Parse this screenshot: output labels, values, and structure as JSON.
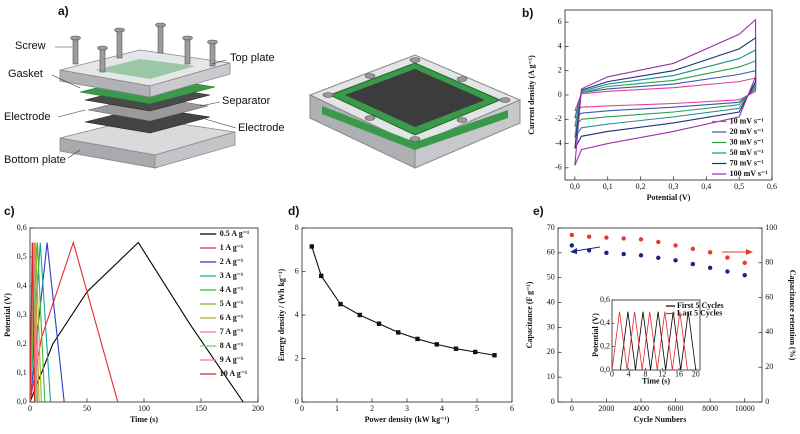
{
  "diagram": {
    "panel": "a)",
    "labels": [
      "Screw",
      "Top plate",
      "Gasket",
      "Separator",
      "Electrode",
      "Electrode",
      "Bottom plate"
    ]
  },
  "chart_data": [
    {
      "panel": "b)",
      "type": "line",
      "xlabel": "Potential (V)",
      "ylabel": "Current density (A g⁻¹)",
      "xlim": [
        -0.03,
        0.6
      ],
      "xticks": [
        {
          "value": 0,
          "label": "0,0"
        },
        {
          "value": 0.1,
          "label": "0,1"
        },
        {
          "value": 0.2,
          "label": "0,2"
        },
        {
          "value": 0.3,
          "label": "0,3"
        },
        {
          "value": 0.4,
          "label": "0,4"
        },
        {
          "value": 0.5,
          "label": "0,5"
        },
        {
          "value": 0.6,
          "label": "0,6"
        }
      ],
      "ylim": [
        -7,
        7
      ],
      "yticks": [
        -6,
        -4,
        -2,
        0,
        2,
        4,
        6
      ],
      "legend": "lower right",
      "x": [
        0,
        0.02,
        0.1,
        0.3,
        0.5,
        0.55,
        0.55,
        0.5,
        0.3,
        0.1,
        0.02,
        0
      ],
      "series": [
        {
          "name": "10 mV s⁻¹",
          "color": "#e0409a",
          "values": [
            -1.3,
            0.1,
            0.3,
            0.6,
            1.1,
            1.4,
            0.3,
            -0.4,
            -0.7,
            -0.9,
            -1.0,
            -1.3
          ]
        },
        {
          "name": "20 mV s⁻¹",
          "color": "#3a5bb0",
          "values": [
            -1.9,
            0.2,
            0.5,
            0.9,
            1.7,
            2.0,
            0.5,
            -0.6,
            -1.0,
            -1.3,
            -1.5,
            -1.9
          ]
        },
        {
          "name": "30 mV s⁻¹",
          "color": "#2aa14c",
          "values": [
            -2.6,
            0.2,
            0.7,
            1.2,
            2.3,
            2.8,
            0.7,
            -0.8,
            -1.4,
            -1.8,
            -2.0,
            -2.6
          ]
        },
        {
          "name": "50 mV s⁻¹",
          "color": "#1f8f8f",
          "values": [
            -3.5,
            0.3,
            0.9,
            1.6,
            3.0,
            3.7,
            0.9,
            -1.1,
            -1.8,
            -2.4,
            -2.7,
            -3.5
          ]
        },
        {
          "name": "70 mV s⁻¹",
          "color": "#1f2f7a",
          "values": [
            -4.4,
            0.4,
            1.1,
            2.0,
            3.8,
            4.7,
            1.1,
            -1.4,
            -2.3,
            -3.0,
            -3.4,
            -4.4
          ]
        },
        {
          "name": "100 mV s⁻¹",
          "color": "#9b2fae",
          "values": [
            -5.8,
            0.5,
            1.5,
            2.6,
            5.0,
            6.2,
            1.5,
            -1.8,
            -3.0,
            -4.0,
            -4.5,
            -5.8
          ]
        }
      ]
    },
    {
      "panel": "c)",
      "type": "line",
      "xlabel": "Time (s)",
      "ylabel": "Potential (V)",
      "xlim": [
        0,
        200
      ],
      "xticks": [
        0,
        50,
        100,
        150,
        200
      ],
      "ylim": [
        0,
        0.6
      ],
      "yticks": [
        {
          "value": 0,
          "label": "0,0"
        },
        {
          "value": 0.1,
          "label": "0,1"
        },
        {
          "value": 0.2,
          "label": "0,2"
        },
        {
          "value": 0.3,
          "label": "0,3"
        },
        {
          "value": 0.4,
          "label": "0,4"
        },
        {
          "value": 0.5,
          "label": "0,5"
        },
        {
          "value": 0.6,
          "label": "0,6"
        }
      ],
      "legend": "upper right",
      "series": [
        {
          "name": "0.5 A g⁻¹",
          "color": "#000000",
          "x": [
            0,
            20,
            50,
            95,
            140,
            187
          ],
          "values": [
            0,
            0.2,
            0.38,
            0.55,
            0.27,
            0
          ]
        },
        {
          "name": "1 A g⁻¹",
          "color": "#e8262a",
          "x": [
            0,
            10,
            38,
            77
          ],
          "values": [
            0,
            0.22,
            0.55,
            0
          ]
        },
        {
          "name": "2 A g⁻¹",
          "color": "#2a3bd0",
          "x": [
            0,
            15,
            30
          ],
          "values": [
            0,
            0.55,
            0
          ]
        },
        {
          "name": "3 A g⁻¹",
          "color": "#1aa39a",
          "x": [
            0,
            9,
            18
          ],
          "values": [
            0,
            0.55,
            0
          ]
        },
        {
          "name": "4 A g⁻¹",
          "color": "#3cb53c",
          "x": [
            0,
            6.5,
            13
          ],
          "values": [
            0,
            0.55,
            0
          ]
        },
        {
          "name": "5 A g⁻¹",
          "color": "#9ab52a",
          "x": [
            0,
            5,
            10
          ],
          "values": [
            0,
            0.55,
            0
          ]
        },
        {
          "name": "6 A g⁻¹",
          "color": "#c8a030",
          "x": [
            0,
            4,
            8
          ],
          "values": [
            0,
            0.55,
            0
          ]
        },
        {
          "name": "7 A g⁻¹",
          "color": "#f06ca8",
          "x": [
            0,
            3.3,
            6.6
          ],
          "values": [
            0,
            0.55,
            0
          ]
        },
        {
          "name": "8 A g⁻¹",
          "color": "#6cd06c",
          "x": [
            0,
            2.8,
            5.6
          ],
          "values": [
            0,
            0.55,
            0
          ]
        },
        {
          "name": "9 A g⁻¹",
          "color": "#f08080",
          "x": [
            0,
            2.4,
            4.8
          ],
          "values": [
            0,
            0.55,
            0
          ]
        },
        {
          "name": "10 A g⁻¹",
          "color": "#e02020",
          "x": [
            0,
            2,
            4
          ],
          "values": [
            0,
            0.55,
            0
          ]
        }
      ]
    },
    {
      "panel": "d)",
      "type": "line",
      "marker": "square",
      "color": "#111111",
      "xlabel": "Power density (kW kg⁻¹)",
      "ylabel": "Energy density / (Wh kg⁻¹)",
      "xlim": [
        0,
        6
      ],
      "xticks": [
        0,
        1,
        2,
        3,
        4,
        5,
        6
      ],
      "ylim": [
        0,
        8
      ],
      "yticks": [
        0,
        2,
        4,
        6,
        8
      ],
      "x": [
        0.28,
        0.55,
        1.1,
        1.65,
        2.2,
        2.75,
        3.3,
        3.85,
        4.4,
        4.95,
        5.5
      ],
      "values": [
        7.15,
        5.8,
        4.5,
        4.0,
        3.6,
        3.2,
        2.9,
        2.65,
        2.45,
        2.3,
        2.15
      ]
    },
    {
      "panel": "e)",
      "type": "scatter",
      "xlabel": "Cycle Numbers",
      "ylabel": "Capacitance (F g⁻¹)",
      "y2label": "Capacitance retention (%)",
      "xlim": [
        -800,
        11000
      ],
      "xticks": [
        0,
        2000,
        4000,
        6000,
        8000,
        10000
      ],
      "ylim": [
        0,
        70
      ],
      "yticks": [
        0,
        10,
        20,
        30,
        40,
        50,
        60,
        70
      ],
      "y2lim": [
        0,
        100
      ],
      "y2ticks": [
        0,
        20,
        40,
        60,
        80,
        100
      ],
      "x": [
        0,
        1000,
        2000,
        3000,
        4000,
        5000,
        6000,
        7000,
        8000,
        9000,
        10000
      ],
      "series": [
        {
          "color": "#1a237e",
          "values": [
            63,
            61,
            60,
            59.5,
            59,
            58,
            57,
            55.5,
            54,
            52.5,
            51
          ]
        },
        {
          "color": "#e53935",
          "axis": "y2",
          "values": [
            96,
            95,
            94.5,
            94,
            93.5,
            92,
            90,
            88,
            86,
            83,
            80
          ]
        }
      ]
    },
    {
      "type": "line",
      "xlabel": "Time (s)",
      "ylabel": "Potential (V)",
      "xlim": [
        0,
        21
      ],
      "xticks": [
        0,
        4,
        8,
        12,
        16,
        20
      ],
      "ylim": [
        0,
        0.6
      ],
      "yticks": [
        {
          "value": 0,
          "label": "0,0"
        },
        {
          "value": 0.2,
          "label": "0,2"
        },
        {
          "value": 0.4,
          "label": "0,4"
        },
        {
          "value": 0.6,
          "label": "0,6"
        }
      ],
      "legend": "upper right",
      "series": [
        {
          "name": "First 5 Cycles",
          "color": "#000000",
          "x": [
            2,
            3.8,
            5.6,
            7.4,
            9.2,
            11,
            12.8,
            14.6,
            16.4,
            18.2,
            20
          ],
          "values": [
            0,
            0.5,
            0,
            0.5,
            0,
            0.5,
            0,
            0.5,
            0,
            0.5,
            0
          ]
        },
        {
          "name": "Last 5 Cycles",
          "color": "#e8262a",
          "x": [
            0,
            1.8,
            3.6,
            5.4,
            7.2,
            9,
            10.8,
            12.6,
            14.4,
            16.2,
            18
          ],
          "values": [
            0,
            0.5,
            0,
            0.5,
            0,
            0.5,
            0,
            0.5,
            0,
            0.5,
            0
          ]
        }
      ]
    }
  ]
}
